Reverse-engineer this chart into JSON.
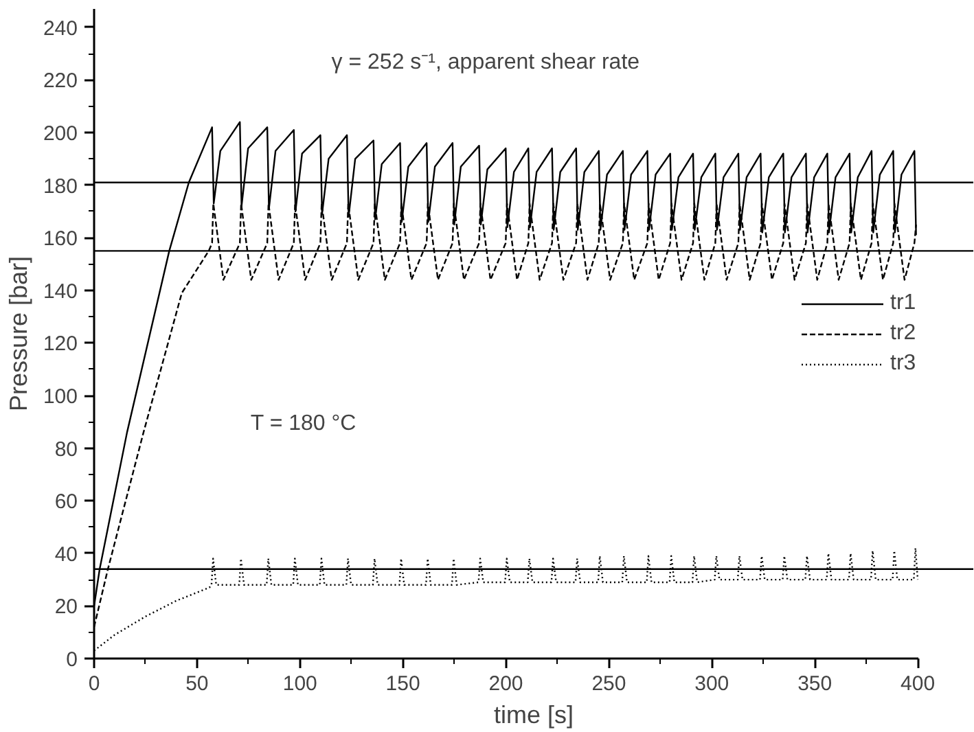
{
  "chart_data": {
    "type": "line",
    "xlabel": "time [s]",
    "ylabel": "Pressure [bar]",
    "annotations": [
      "γ = 252 s⁻¹, apparent shear rate",
      "T = 180 °C"
    ],
    "xlim": [
      0,
      427
    ],
    "ylim": [
      0,
      247
    ],
    "xticks": [
      0,
      {
        "value": 25,
        "label": null
      },
      50,
      {
        "value": 75,
        "label": null
      },
      100,
      {
        "value": 125,
        "label": null
      },
      150,
      {
        "value": 175,
        "label": null
      },
      200,
      {
        "value": 225,
        "label": null
      },
      250,
      {
        "value": 275,
        "label": null
      },
      300,
      {
        "value": 325,
        "label": null
      },
      350,
      {
        "value": 375,
        "label": null
      },
      400
    ],
    "yticks": [
      0,
      {
        "value": 10,
        "label": null
      },
      20,
      {
        "value": 30,
        "label": null
      },
      40,
      {
        "value": 50,
        "label": null
      },
      60,
      {
        "value": 70,
        "label": null
      },
      80,
      {
        "value": 90,
        "label": null
      },
      100,
      {
        "value": 110,
        "label": null
      },
      120,
      {
        "value": 130,
        "label": null
      },
      140,
      {
        "value": 150,
        "label": null
      },
      160,
      {
        "value": 170,
        "label": null
      },
      180,
      {
        "value": 190,
        "label": null
      },
      200,
      {
        "value": 210,
        "label": null
      },
      220,
      {
        "value": 230,
        "label": null
      },
      240
    ],
    "grid": false,
    "legend": "right",
    "marker": "none",
    "ref_lines": [
      {
        "axis": "y",
        "value": 181,
        "color": "#000000"
      },
      {
        "axis": "y",
        "value": 155,
        "color": "#000000"
      },
      {
        "axis": "y",
        "value": 34,
        "color": "#000000"
      }
    ],
    "series": [
      {
        "name": "tr1",
        "color": "#000000",
        "line_style": "solid",
        "x": [
          0,
          2.7,
          16,
          36.5,
          46,
          57.3,
          58.1,
          61.3,
          70.8,
          71.6,
          74.8,
          84.1,
          84.9,
          88.1,
          97,
          97.8,
          101,
          109.9,
          110.7,
          113.9,
          122.8,
          123.6,
          126.8,
          135.7,
          136.5,
          139.7,
          148.6,
          149.4,
          152.6,
          161.5,
          162.3,
          165.5,
          174.1,
          174.9,
          178.1,
          187,
          187.8,
          191,
          199.9,
          200.7,
          203.9,
          210.9,
          211.7,
          214.9,
          222.4,
          223.2,
          226.4,
          234.1,
          234.9,
          238.1,
          245.1,
          245.9,
          249.1,
          256.8,
          257.6,
          260.8,
          268.7,
          269.5,
          272.7,
          279.8,
          280.6,
          283.8,
          290.9,
          291.7,
          294.9,
          301.7,
          302.5,
          305.7,
          312.9,
          313.7,
          316.9,
          323.7,
          324.5,
          327.7,
          334.7,
          335.5,
          338.7,
          345.7,
          346.5,
          349.7,
          356.1,
          356.9,
          360.1,
          366.9,
          367.7,
          370.9,
          377.6,
          378.4,
          381.6,
          388.1,
          388.9,
          392.1,
          398.4,
          399.2
        ],
        "values": [
          20,
          34,
          86,
          155,
          181,
          202,
          173,
          193,
          204,
          172,
          194,
          202,
          171,
          193,
          201,
          170,
          192,
          199,
          169,
          190,
          199,
          168,
          190,
          197,
          167,
          188,
          196,
          166,
          187,
          196,
          166,
          187,
          196,
          165,
          187,
          195,
          165,
          186,
          194,
          164,
          185,
          194,
          164,
          185,
          194,
          163,
          185,
          194,
          163,
          185,
          193,
          163,
          184,
          193,
          163,
          184,
          193,
          163,
          184,
          192,
          163,
          183,
          192,
          163,
          183,
          192,
          163,
          183,
          192,
          163,
          183,
          192,
          162,
          183,
          192,
          162,
          183,
          192,
          162,
          183,
          192,
          162,
          183,
          192,
          162,
          183,
          193,
          162,
          184,
          193,
          162,
          184,
          193,
          161
        ]
      },
      {
        "name": "tr2",
        "color": "#000000",
        "line_style": "dashed",
        "x": [
          0,
          6.7,
          24,
          42.6,
          55.7,
          57.3,
          57.9,
          62.8,
          70.8,
          71.4,
          76.3,
          84.1,
          84.7,
          89.6,
          97,
          97.6,
          102.5,
          109.9,
          110.5,
          115.4,
          122.8,
          123.4,
          128.3,
          135.7,
          136.3,
          141.2,
          148.6,
          149.2,
          154.1,
          161.5,
          162.1,
          167,
          174.1,
          174.7,
          179.6,
          187,
          187.6,
          192.5,
          199.9,
          200.5,
          205.4,
          210.9,
          211.5,
          216.4,
          222.4,
          223,
          227.9,
          234.1,
          234.7,
          239.6,
          245.1,
          245.7,
          250.6,
          256.8,
          257.4,
          262.3,
          268.7,
          269.3,
          274.2,
          279.8,
          280.4,
          285.3,
          290.9,
          291.5,
          296.4,
          301.7,
          302.3,
          307.2,
          312.9,
          313.5,
          318.4,
          323.7,
          324.3,
          329.2,
          334.7,
          335.3,
          340.2,
          345.7,
          346.3,
          351.2,
          356.1,
          356.7,
          361.6,
          366.9,
          367.5,
          372.4,
          377.6,
          378.2,
          383.1,
          388.1,
          388.7,
          393.6,
          398.4,
          399.2
        ],
        "values": [
          12,
          34,
          86,
          139,
          155,
          158,
          173,
          144,
          158,
          173,
          144,
          158,
          173,
          144,
          158,
          173,
          144,
          158,
          173,
          144,
          158,
          173,
          144,
          158,
          173,
          144,
          158,
          173,
          144,
          158,
          173,
          144,
          158,
          173,
          144,
          158,
          173,
          144,
          158,
          173,
          144,
          158,
          173,
          144,
          158,
          173,
          144,
          158,
          173,
          144,
          158,
          173,
          144,
          158,
          173,
          144,
          158,
          173,
          144,
          158,
          173,
          144,
          158,
          173,
          144,
          158,
          173,
          144,
          158,
          173,
          144,
          158,
          173,
          144,
          158,
          173,
          144,
          158,
          173,
          144,
          158,
          173,
          144,
          158,
          173,
          144,
          158,
          173,
          144,
          158,
          173,
          144,
          158,
          165
        ]
      },
      {
        "name": "tr3",
        "color": "#000000",
        "line_style": "dotted",
        "x": [
          0,
          10,
          25,
          40,
          56,
          57,
          57.8,
          59.3,
          70.5,
          71.3,
          72.8,
          83.8,
          84.6,
          86.1,
          96.7,
          97.5,
          99,
          109.6,
          110.4,
          111.9,
          122.5,
          123.3,
          124.8,
          135.4,
          136.2,
          137.7,
          148.3,
          149.1,
          150.6,
          161.2,
          162,
          163.5,
          173.8,
          174.6,
          176.1,
          186.7,
          187.5,
          189,
          199.6,
          200.4,
          201.9,
          210.6,
          211.4,
          212.9,
          222.1,
          222.9,
          224.4,
          233.8,
          234.6,
          236.1,
          244.8,
          245.6,
          247.1,
          256.5,
          257.3,
          258.8,
          268.4,
          269.2,
          270.7,
          279.5,
          280.3,
          281.8,
          290.6,
          291.4,
          292.9,
          301.4,
          302.2,
          303.7,
          312.6,
          313.4,
          314.9,
          323.4,
          324.2,
          325.7,
          334.4,
          335.2,
          336.7,
          345.4,
          346.2,
          347.7,
          355.8,
          356.6,
          358.1,
          366.6,
          367.4,
          368.9,
          377.3,
          378.1,
          379.6,
          387.8,
          388.6,
          390.1,
          398.1,
          398.9,
          400
        ],
        "values": [
          3,
          9,
          16,
          22,
          27,
          28,
          38,
          28,
          28,
          38,
          28,
          28,
          38,
          28,
          28,
          38,
          28,
          28,
          38,
          28,
          28,
          38,
          28,
          28,
          38,
          28,
          28,
          38,
          28,
          28,
          38,
          28,
          28,
          38,
          28,
          29,
          38,
          29,
          29,
          38,
          29,
          29,
          38,
          29,
          29,
          38,
          29,
          29,
          38,
          29,
          29,
          39,
          29,
          29,
          39,
          29,
          29,
          39,
          29,
          29,
          39,
          29,
          29,
          39,
          29,
          30,
          39,
          30,
          30,
          39,
          30,
          30,
          39,
          30,
          30,
          39,
          30,
          30,
          39,
          30,
          30,
          40,
          30,
          30,
          40,
          30,
          30,
          41,
          30,
          30,
          41,
          30,
          30,
          42,
          30
        ]
      }
    ]
  }
}
